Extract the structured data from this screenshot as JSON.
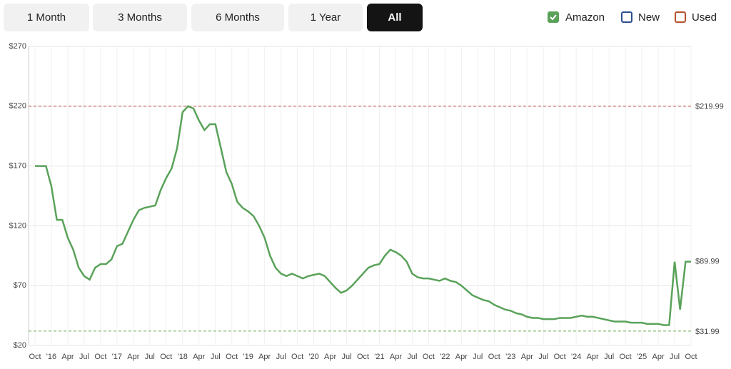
{
  "range_buttons": {
    "labels": [
      "1 Month",
      "3 Months",
      "6 Months",
      "1 Year",
      "All"
    ],
    "active": 4
  },
  "chart_data": {
    "type": "line",
    "categories": [
      "Oct",
      null,
      null,
      "'16",
      null,
      null,
      "Apr",
      null,
      null,
      "Jul",
      null,
      null,
      "Oct",
      null,
      null,
      "'17",
      null,
      null,
      "Apr",
      null,
      null,
      "Jul",
      null,
      null,
      "Oct",
      null,
      null,
      "'18",
      null,
      null,
      "Apr",
      null,
      null,
      "Jul",
      null,
      null,
      "Oct",
      null,
      null,
      "'19",
      null,
      null,
      "Apr",
      null,
      null,
      "Jul",
      null,
      null,
      "Oct",
      null,
      null,
      "'20",
      null,
      null,
      "Apr",
      null,
      null,
      "Jul",
      null,
      null,
      "Oct",
      null,
      null,
      "'21",
      null,
      null,
      "Apr",
      null,
      null,
      "Jul",
      null,
      null,
      "Oct",
      null,
      null,
      "'22",
      null,
      null,
      "Apr",
      null,
      null,
      "Jul",
      null,
      null,
      "Oct",
      null,
      null,
      "'23",
      null,
      null,
      "Apr",
      null,
      null,
      "Jul",
      null,
      null,
      "Oct",
      null,
      null,
      "'24",
      null,
      null,
      "Apr",
      null,
      null,
      "Jul",
      null,
      null,
      "Oct",
      null,
      null,
      "'25",
      null,
      null,
      "Apr",
      null,
      null,
      "Jul",
      null,
      null,
      "Oct"
    ],
    "series": [
      {
        "name": "Amazon",
        "color": "#5aa25a",
        "checked": true,
        "values": [
          170,
          170,
          170,
          153,
          125,
          125,
          110,
          100,
          85,
          78,
          75,
          85,
          88,
          88,
          92,
          103,
          105,
          115,
          125,
          133,
          135,
          136,
          137,
          150,
          160,
          168,
          185,
          215,
          220,
          218,
          208,
          200,
          205,
          205,
          185,
          165,
          155,
          140,
          135,
          132,
          128,
          120,
          110,
          95,
          85,
          80,
          78,
          80,
          78,
          76,
          78,
          79,
          80,
          78,
          73,
          68,
          64,
          66,
          70,
          75,
          80,
          85,
          87,
          88,
          95,
          100,
          98,
          95,
          90,
          80,
          77,
          76,
          76,
          75,
          74,
          76,
          74,
          73,
          70,
          66,
          62,
          60,
          58,
          57,
          54,
          52,
          50,
          49,
          47,
          46,
          44,
          43,
          43,
          42,
          42,
          42,
          43,
          43,
          43,
          44,
          45,
          44,
          44,
          43,
          42,
          41,
          40,
          40,
          40,
          39,
          39,
          39,
          38,
          38,
          38,
          37,
          37,
          90,
          50,
          90,
          90
        ]
      }
    ],
    "other_series": [
      {
        "name": "New",
        "color": "#2c4f8f",
        "checked": false
      },
      {
        "name": "Used",
        "color": "#b5532f",
        "checked": false
      }
    ],
    "ylim": [
      20,
      270
    ],
    "yticks": [
      {
        "value": 20,
        "label": "$20"
      },
      {
        "value": 70,
        "label": "$70"
      },
      {
        "value": 120,
        "label": "$120"
      },
      {
        "value": 170,
        "label": "$170"
      },
      {
        "value": 220,
        "label": "$220"
      },
      {
        "value": 270,
        "label": "$270"
      }
    ],
    "grid": true,
    "reference_lines": [
      {
        "value": 219.99,
        "label": "$219.99",
        "color": "#c0504d"
      },
      {
        "value": 31.99,
        "label": "$31.99",
        "color": "#6aa84f"
      }
    ],
    "current_price": {
      "value": 89.99,
      "label": "$89.99",
      "color": "#5aa25a"
    }
  }
}
